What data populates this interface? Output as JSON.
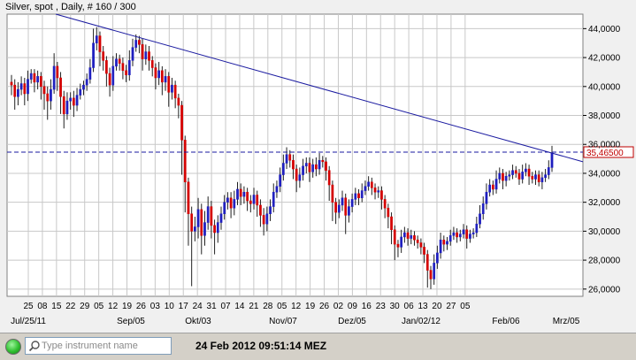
{
  "window": {
    "title": "Silver, spot , Daily, # 160 / 300"
  },
  "status_bar": {
    "instrument_placeholder": "Type instrument name",
    "timestamp": "24 Feb 2012 09:51:14 MEZ"
  },
  "chart_data": {
    "type": "candlestick",
    "instrument": "Silver, spot",
    "timeframe": "Daily",
    "ylim": [
      25500,
      45000
    ],
    "y_ticks": [
      "26,0000",
      "28,0000",
      "30,0000",
      "32,0000",
      "34,0000",
      "36,0000",
      "38,0000",
      "40,0000",
      "42,0000",
      "44,0000"
    ],
    "y_tick_values": [
      26000,
      28000,
      30000,
      32000,
      34000,
      36000,
      38000,
      40000,
      42000,
      44000
    ],
    "x_ticks": [
      "25",
      "08",
      "15",
      "22",
      "29",
      "05",
      "12",
      "19",
      "26",
      "03",
      "10",
      "17",
      "24",
      "31",
      "07",
      "14",
      "21",
      "28",
      "05",
      "12",
      "19",
      "26",
      "02",
      "09",
      "16",
      "23",
      "30",
      "06",
      "13",
      "20",
      "27",
      "05"
    ],
    "x_month_labels": [
      "Jul/25/11",
      "Sep/05",
      "Okt/03",
      "Nov/07",
      "Dez/05",
      "Jan/02/12",
      "Feb/06",
      "Mrz/05"
    ],
    "current_price_label": "35,46500",
    "current_price": 35465,
    "trendline": {
      "start": [
        0,
        45000
      ],
      "end": [
        166,
        34800
      ]
    },
    "colors": {
      "up": "#1f1fbf",
      "down": "#d40000",
      "trendline": "#1a1aa0",
      "price_line": "#1a1aa0",
      "grid": "#c8c8c8"
    },
    "grid": true,
    "closes": [
      40100,
      39300,
      39800,
      40200,
      39500,
      40500,
      40900,
      40300,
      40700,
      40000,
      39500,
      39000,
      39800,
      41400,
      40600,
      39300,
      38100,
      39000,
      39200,
      38700,
      39400,
      39800,
      40100,
      40500,
      41300,
      43000,
      43500,
      42400,
      41800,
      40900,
      40100,
      41400,
      41900,
      41600,
      41100,
      40800,
      41800,
      42700,
      43200,
      42900,
      41900,
      42400,
      41800,
      41300,
      40600,
      41100,
      40300,
      40700,
      39600,
      40100,
      39200,
      38700,
      36300,
      33400,
      31200,
      30000,
      30300,
      31500,
      29700,
      30600,
      31700,
      30400,
      29900,
      30600,
      31200,
      32000,
      32300,
      31600,
      32200,
      32900,
      32400,
      32700,
      32100,
      31900,
      32500,
      31800,
      31100,
      30500,
      31200,
      31700,
      32700,
      33100,
      33900,
      34700,
      35300,
      34900,
      34300,
      33500,
      33900,
      34500,
      34700,
      34100,
      34600,
      34300,
      34900,
      34800,
      34200,
      33200,
      32000,
      31300,
      31800,
      32300,
      31100,
      31700,
      32200,
      32600,
      32300,
      32800,
      33100,
      33400,
      33000,
      32700,
      32800,
      32200,
      31600,
      31000,
      30100,
      29100,
      28900,
      29600,
      29900,
      29500,
      29700,
      29400,
      29200,
      28900,
      28400,
      27300,
      26700,
      27800,
      28500,
      29400,
      29100,
      29300,
      29700,
      29900,
      29600,
      29800,
      30100,
      29500,
      29800,
      29900,
      30500,
      31200,
      31900,
      32700,
      33200,
      32900,
      33600,
      34000,
      33500,
      33800,
      33900,
      34200,
      34000,
      33600,
      34100,
      34300,
      33800,
      33600,
      33900,
      33400,
      33700,
      33900,
      34400,
      35400
    ],
    "opens": [
      40300,
      40100,
      39300,
      39800,
      40200,
      39500,
      40500,
      40900,
      40300,
      40700,
      40000,
      39500,
      39000,
      39800,
      41400,
      40600,
      39300,
      38100,
      39000,
      39200,
      38700,
      39400,
      39800,
      40100,
      40500,
      41300,
      43000,
      43500,
      42400,
      41800,
      40900,
      40100,
      41400,
      41900,
      41600,
      41100,
      40800,
      41800,
      42700,
      43200,
      42900,
      41900,
      42400,
      41800,
      41300,
      40600,
      41100,
      40300,
      40700,
      39600,
      40100,
      39200,
      38700,
      36300,
      33400,
      31200,
      30000,
      30300,
      31500,
      29700,
      30600,
      31700,
      30400,
      29900,
      30600,
      31200,
      32000,
      32300,
      31600,
      32200,
      32900,
      32400,
      32700,
      32100,
      31900,
      32500,
      31800,
      31100,
      30500,
      31200,
      31700,
      32700,
      33100,
      33900,
      34700,
      35300,
      34900,
      34300,
      33500,
      33900,
      34500,
      34700,
      34100,
      34600,
      34300,
      34900,
      34800,
      34200,
      33200,
      32000,
      31300,
      31800,
      32300,
      31100,
      31700,
      32200,
      32600,
      32300,
      32800,
      33100,
      33400,
      33000,
      32700,
      32800,
      32200,
      31600,
      31000,
      30100,
      29100,
      28900,
      29600,
      29900,
      29500,
      29700,
      29400,
      29200,
      28900,
      28400,
      27300,
      26700,
      27800,
      28500,
      29400,
      29100,
      29300,
      29700,
      29900,
      29600,
      29800,
      30100,
      29500,
      29800,
      29900,
      30500,
      31200,
      31900,
      32700,
      33200,
      32900,
      33600,
      34000,
      33500,
      33800,
      33900,
      34200,
      34000,
      33600,
      34100,
      34300,
      33800,
      33600,
      33900,
      33400,
      33700,
      33900,
      34400
    ],
    "lows_below": [
      700,
      900,
      600,
      400,
      800,
      500,
      300,
      700,
      500,
      900,
      1100,
      1300,
      600,
      300,
      900,
      1200,
      1000,
      400,
      600,
      800,
      400,
      300,
      400,
      400,
      300,
      300,
      500,
      1000,
      700,
      900,
      800,
      400,
      300,
      500,
      600,
      500,
      400,
      400,
      300,
      600,
      800,
      400,
      700,
      600,
      800,
      500,
      900,
      600,
      1000,
      500,
      700,
      900,
      2400,
      2100,
      2200,
      3800,
      700,
      800,
      1300,
      700,
      500,
      900,
      1500,
      700,
      500,
      400,
      500,
      700,
      500,
      400,
      600,
      500,
      700,
      600,
      400,
      800,
      800,
      800,
      500,
      500,
      400,
      400,
      400,
      400,
      400,
      500,
      700,
      800,
      500,
      400,
      500,
      700,
      400,
      500,
      400,
      400,
      700,
      1100,
      1300,
      800,
      400,
      400,
      1300,
      500,
      400,
      400,
      500,
      300,
      300,
      300,
      500,
      500,
      400,
      700,
      700,
      800,
      1000,
      1100,
      700,
      400,
      400,
      500,
      400,
      400,
      400,
      500,
      600,
      1200,
      700,
      400,
      400,
      400,
      500,
      400,
      300,
      300,
      400,
      300,
      300,
      700,
      300,
      300,
      300,
      300,
      400,
      400,
      300,
      400,
      300,
      300,
      600,
      400,
      300,
      300,
      300,
      400,
      300,
      300,
      600,
      300,
      400,
      300,
      500,
      300,
      300,
      300
    ],
    "highs_above": [
      500,
      400,
      500,
      500,
      400,
      600,
      300,
      300,
      400,
      300,
      400,
      500,
      700,
      900,
      300,
      400,
      400,
      600,
      400,
      500,
      500,
      400,
      300,
      400,
      600,
      1000,
      600,
      300,
      400,
      300,
      400,
      700,
      400,
      300,
      400,
      400,
      700,
      600,
      400,
      300,
      400,
      500,
      400,
      300,
      300,
      600,
      300,
      500,
      300,
      500,
      300,
      300,
      300,
      300,
      300,
      500,
      700,
      800,
      400,
      800,
      700,
      400,
      400,
      500,
      500,
      500,
      400,
      400,
      600,
      500,
      400,
      400,
      300,
      400,
      500,
      300,
      400,
      500,
      500,
      500,
      600,
      400,
      500,
      600,
      500,
      300,
      400,
      300,
      500,
      500,
      400,
      400,
      400,
      500,
      500,
      300,
      300,
      300,
      300,
      300,
      400,
      500,
      300,
      500,
      400,
      400,
      300,
      500,
      400,
      400,
      300,
      300,
      300,
      300,
      300,
      300,
      300,
      300,
      300,
      500,
      400,
      300,
      400,
      300,
      300,
      300,
      300,
      300,
      300,
      600,
      500,
      500,
      300,
      300,
      400,
      400,
      300,
      300,
      400,
      300,
      300,
      300,
      500,
      600,
      500,
      600,
      400,
      300,
      600,
      400,
      300,
      300,
      300,
      400,
      300,
      300,
      500,
      400,
      300,
      300,
      300,
      300,
      400,
      400,
      500,
      500
    ]
  }
}
